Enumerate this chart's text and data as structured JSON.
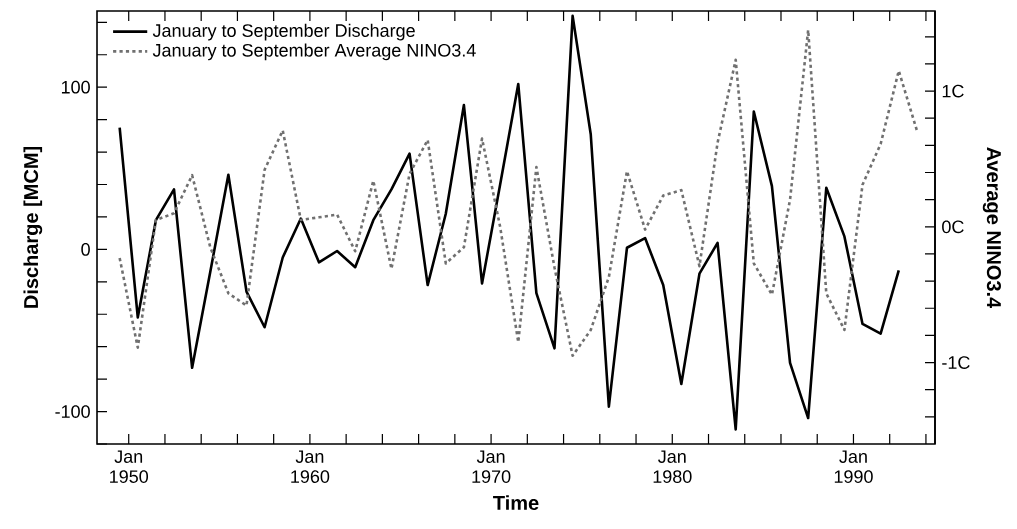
{
  "chart_data": {
    "type": "line",
    "xlabel": "Time",
    "ylabel": "Discharge [MCM]",
    "y2label": "Average NINO3.4",
    "x": [
      "1949-07",
      "1950-07",
      "1951-07",
      "1952-07",
      "1953-07",
      "1954-07",
      "1955-07",
      "1956-07",
      "1957-07",
      "1958-07",
      "1959-07",
      "1960-07",
      "1961-07",
      "1962-07",
      "1963-07",
      "1964-07",
      "1965-07",
      "1966-07",
      "1967-07",
      "1968-07",
      "1969-07",
      "1970-07",
      "1971-07",
      "1972-07",
      "1973-07",
      "1974-07",
      "1975-07",
      "1976-07",
      "1977-07",
      "1978-07",
      "1979-07",
      "1980-07",
      "1981-07",
      "1982-07",
      "1983-07",
      "1984-07",
      "1985-07",
      "1986-07",
      "1987-07",
      "1988-07",
      "1989-07",
      "1990-07",
      "1991-07",
      "1992-07",
      "1993-07"
    ],
    "series": [
      {
        "name": "January to September Discharge",
        "color": "#000000",
        "line_style": "solid",
        "values": [
          75,
          -42,
          18,
          37,
          -73,
          -14,
          46,
          -26,
          -48,
          -5,
          19,
          -8,
          -1,
          -11,
          18,
          37,
          59,
          -22,
          22,
          89,
          -21,
          40,
          102,
          -27,
          -61,
          144,
          71,
          -97,
          1,
          7,
          -22,
          -83,
          -15,
          4,
          -111,
          85,
          39,
          -70,
          -104,
          38,
          8,
          -46,
          -52,
          -13,
          null
        ]
      },
      {
        "name": "January to September Average NINO3.4",
        "color": "#707070",
        "line_style": "dotted",
        "axis": "y2",
        "values": [
          -0.23,
          -0.89,
          0.05,
          0.1,
          0.38,
          -0.15,
          -0.49,
          -0.58,
          0.42,
          0.71,
          0.05,
          0.07,
          0.09,
          -0.18,
          0.34,
          -0.31,
          0.39,
          0.64,
          -0.27,
          -0.15,
          0.65,
          0.0,
          -0.85,
          0.44,
          -0.3,
          -0.95,
          -0.76,
          -0.37,
          0.41,
          -0.02,
          0.23,
          0.27,
          -0.29,
          0.62,
          1.23,
          -0.27,
          -0.5,
          0.2,
          1.45,
          -0.49,
          -0.76,
          0.31,
          0.61,
          1.15,
          0.71
        ]
      }
    ],
    "xlim": [
      "1948-04",
      "1994-07"
    ],
    "xticks": [
      {
        "value": "1950-01",
        "label": "Jan 1950"
      },
      {
        "value": "1952-01",
        "label": null
      },
      {
        "value": "1954-01",
        "label": null
      },
      {
        "value": "1956-01",
        "label": null
      },
      {
        "value": "1958-01",
        "label": null
      },
      {
        "value": "1960-01",
        "label": "Jan 1960"
      },
      {
        "value": "1962-01",
        "label": null
      },
      {
        "value": "1964-01",
        "label": null
      },
      {
        "value": "1966-01",
        "label": null
      },
      {
        "value": "1968-01",
        "label": null
      },
      {
        "value": "1970-01",
        "label": "Jan 1970"
      },
      {
        "value": "1972-01",
        "label": null
      },
      {
        "value": "1974-01",
        "label": null
      },
      {
        "value": "1976-01",
        "label": null
      },
      {
        "value": "1978-01",
        "label": null
      },
      {
        "value": "1980-01",
        "label": "Jan 1980"
      },
      {
        "value": "1982-01",
        "label": null
      },
      {
        "value": "1984-01",
        "label": null
      },
      {
        "value": "1986-01",
        "label": null
      },
      {
        "value": "1988-01",
        "label": null
      },
      {
        "value": "1990-01",
        "label": "Jan 1990"
      },
      {
        "value": "1992-01",
        "label": null
      },
      {
        "value": "1994-01",
        "label": null
      }
    ],
    "ylim": [
      -120,
      147
    ],
    "yticks": [
      {
        "value": -120,
        "label": null
      },
      -100,
      {
        "value": -80,
        "label": null
      },
      {
        "value": -60,
        "label": null
      },
      {
        "value": -40,
        "label": null
      },
      {
        "value": -20,
        "label": null
      },
      0,
      {
        "value": 20,
        "label": null
      },
      {
        "value": 40,
        "label": null
      },
      {
        "value": 60,
        "label": null
      },
      {
        "value": 80,
        "label": null
      },
      100,
      {
        "value": 120,
        "label": null
      },
      {
        "value": 140,
        "label": null
      }
    ],
    "y2lim": [
      -1.6,
      1.59
    ],
    "y2ticks": [
      {
        "value": -1.4,
        "label": null
      },
      {
        "value": -1.2,
        "label": null
      },
      {
        "value": -1,
        "label": "-1C"
      },
      {
        "value": -0.8,
        "label": null
      },
      {
        "value": -0.6,
        "label": null
      },
      {
        "value": -0.4,
        "label": null
      },
      {
        "value": -0.2,
        "label": null
      },
      {
        "value": 0,
        "label": "0C"
      },
      {
        "value": 0.2,
        "label": null
      },
      {
        "value": 0.4,
        "label": null
      },
      {
        "value": 0.6,
        "label": null
      },
      {
        "value": 0.8,
        "label": null
      },
      {
        "value": 1,
        "label": "1C"
      },
      {
        "value": 1.2,
        "label": null
      },
      {
        "value": 1.4,
        "label": null
      }
    ],
    "legend": "top left"
  }
}
